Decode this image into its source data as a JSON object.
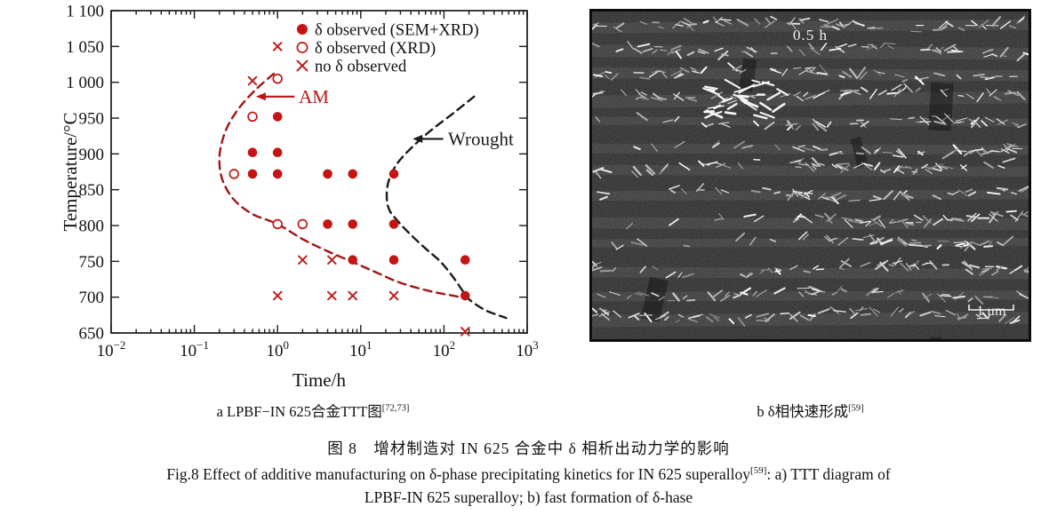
{
  "figure": {
    "panel_a_caption": {
      "text": "a  LPBF−IN 625合金TTT图",
      "sup": "[72,73]"
    },
    "panel_b_caption": {
      "text": "b  δ相快速形成",
      "sup": "[59]"
    },
    "title_cn": "图 8　增材制造对 IN 625 合金中 δ 相析出动力学的影响",
    "title_en": {
      "pre": "Fig.8 Effect of additive manufacturing on δ-phase precipitating kinetics for IN 625 superalloy",
      "sup": "[59]",
      "post": ": a) TTT diagram of"
    },
    "title_en_line2": "LPBF-IN 625 superalloy; b) fast formation of δ-hase"
  },
  "micrograph": {
    "time_label": "0.5 h",
    "scale_bar_label": "1 μm"
  },
  "chart_data": {
    "type": "scatter",
    "xlabel": "Time/h",
    "ylabel": "Temperature/°C",
    "x_scale": "log",
    "xlim": [
      0.01,
      1000
    ],
    "x_tick_exponents": [
      -2,
      -1,
      0,
      1,
      2,
      3
    ],
    "ylim": [
      650,
      1100
    ],
    "y_tick_step": 50,
    "y_tick_labels_top_to_bottom": [
      "1 100",
      "1 050",
      "1 000",
      "950",
      "900",
      "850",
      "800",
      "750",
      "700",
      "650"
    ],
    "grid": false,
    "legend_position": "top-right-inside",
    "legend": [
      {
        "marker": "filled-circle",
        "label": "δ observed (SEM+XRD)"
      },
      {
        "marker": "open-circle",
        "label": "δ observed (XRD)"
      },
      {
        "marker": "x-cross",
        "label": "no δ observed"
      }
    ],
    "series": [
      {
        "name": "δ observed (SEM+XRD)",
        "marker": "filled-circle",
        "color": "#c41414",
        "points": [
          [
            1,
            952
          ],
          [
            0.5,
            902
          ],
          [
            1,
            902
          ],
          [
            0.5,
            872
          ],
          [
            1,
            872
          ],
          [
            4,
            872
          ],
          [
            8,
            872
          ],
          [
            25,
            872
          ],
          [
            4,
            802
          ],
          [
            8,
            802
          ],
          [
            25,
            802
          ],
          [
            8,
            752
          ],
          [
            25,
            752
          ],
          [
            180,
            752
          ],
          [
            180,
            702
          ]
        ]
      },
      {
        "name": "δ observed (XRD)",
        "marker": "open-circle",
        "color": "#c41414",
        "points": [
          [
            1,
            1005
          ],
          [
            0.5,
            952
          ],
          [
            0.3,
            872
          ],
          [
            1,
            802
          ],
          [
            2,
            802
          ]
        ]
      },
      {
        "name": "no δ observed",
        "marker": "x-cross",
        "color": "#c02020",
        "points": [
          [
            1,
            1050
          ],
          [
            0.5,
            1002
          ],
          [
            2,
            752
          ],
          [
            4.5,
            752
          ],
          [
            1,
            702
          ],
          [
            4.5,
            702
          ],
          [
            8,
            702
          ],
          [
            25,
            702
          ],
          [
            180,
            652
          ]
        ]
      }
    ],
    "curves": [
      {
        "name": "AM",
        "style": "dashed",
        "color": "#a31414",
        "points": [
          [
            0.9,
            1012
          ],
          [
            0.55,
            990
          ],
          [
            0.35,
            965
          ],
          [
            0.25,
            938
          ],
          [
            0.21,
            912
          ],
          [
            0.2,
            888
          ],
          [
            0.22,
            862
          ],
          [
            0.3,
            836
          ],
          [
            0.5,
            816
          ],
          [
            1,
            802
          ],
          [
            2,
            781
          ],
          [
            4,
            764
          ],
          [
            8,
            749
          ],
          [
            15,
            735
          ],
          [
            30,
            720
          ],
          [
            70,
            708
          ],
          [
            130,
            702
          ],
          [
            185,
            698
          ]
        ]
      },
      {
        "name": "Wrought",
        "style": "dashed",
        "color": "#1a1a1a",
        "points": [
          [
            230,
            980
          ],
          [
            130,
            957
          ],
          [
            70,
            933
          ],
          [
            42,
            910
          ],
          [
            28,
            888
          ],
          [
            22,
            865
          ],
          [
            20.5,
            842
          ],
          [
            22,
            822
          ],
          [
            28,
            806
          ],
          [
            40,
            787
          ],
          [
            60,
            768
          ],
          [
            90,
            750
          ],
          [
            125,
            730
          ],
          [
            165,
            710
          ],
          [
            200,
            697
          ],
          [
            300,
            683
          ],
          [
            420,
            676
          ],
          [
            560,
            671
          ]
        ]
      }
    ],
    "annotations": [
      {
        "text": "AM",
        "color": "#c01414",
        "arrow_tip": [
          0.55,
          980
        ],
        "arrow_tail": [
          1.6,
          980
        ],
        "label_at": [
          1.8,
          980
        ]
      },
      {
        "text": "Wrought",
        "color": "#1a1a1a",
        "arrow_tip": [
          42,
          921
        ],
        "arrow_tail": [
          98,
          921
        ],
        "label_at": [
          112,
          921
        ]
      }
    ],
    "colors": {
      "axis": "#1a1a1a"
    }
  }
}
